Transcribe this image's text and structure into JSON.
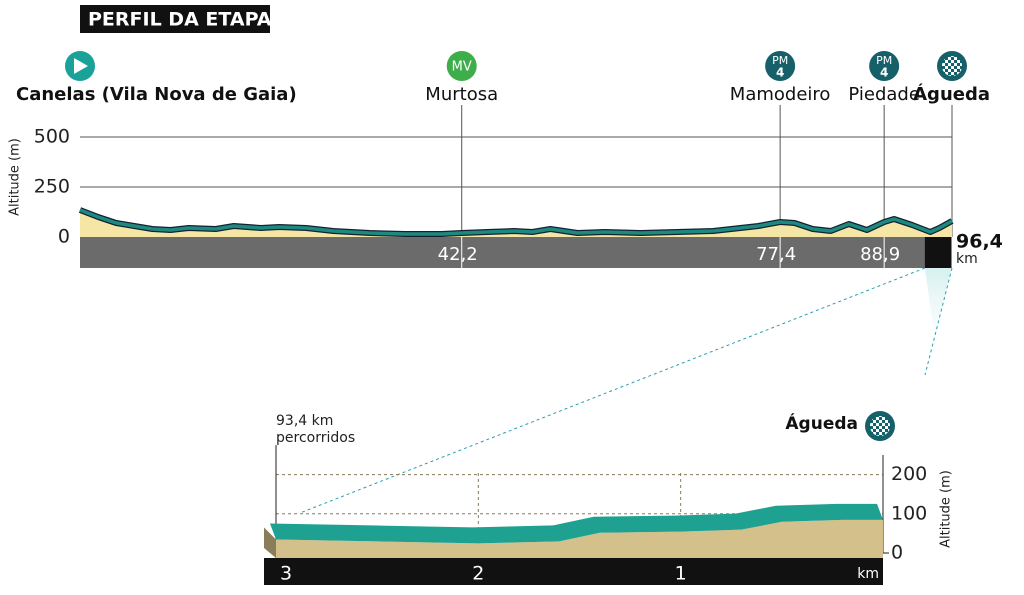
{
  "title": "PERFIL DA ETAPA",
  "chart_data": [
    {
      "type": "area",
      "ylabel": "Altitude (m)",
      "xlabel": "km",
      "x": [
        0,
        2,
        4,
        6,
        8,
        10,
        12,
        15,
        17,
        20,
        22,
        25,
        28,
        32,
        36,
        40,
        42.2,
        45,
        48,
        50,
        52,
        55,
        58,
        62,
        66,
        70,
        73,
        75,
        77.4,
        79,
        81,
        83,
        85,
        87,
        88.9,
        90,
        92,
        94,
        95,
        96.4
      ],
      "values": [
        135,
        100,
        70,
        55,
        40,
        35,
        45,
        40,
        55,
        45,
        50,
        45,
        30,
        20,
        15,
        15,
        20,
        25,
        30,
        25,
        40,
        20,
        25,
        20,
        25,
        30,
        45,
        55,
        75,
        70,
        40,
        30,
        65,
        35,
        75,
        90,
        60,
        25,
        45,
        80
      ],
      "xlim": [
        0,
        96.4
      ],
      "ylim": [
        0,
        650
      ],
      "yticks": [
        0,
        250,
        500
      ],
      "xticks": [
        {
          "value": 42.2,
          "label": "42,2"
        },
        {
          "value": 77.4,
          "label": "77,4"
        },
        {
          "value": 88.9,
          "label": "88,9"
        },
        {
          "value": 96.4,
          "label": "96,4"
        }
      ],
      "fill": "#f6e6a6",
      "line_color": "#1e8a7f",
      "places": [
        {
          "name": "Canelas (Vila Nova de Gaia)",
          "x": 0
        },
        {
          "name": "Murtosa",
          "x": 42.2,
          "badge": "MV",
          "badge_color": "#3dae4a"
        },
        {
          "name": "Mamodeiro",
          "x": 77.4,
          "badge": "PM",
          "category": "4",
          "badge_color": "#16606a"
        },
        {
          "name": "Piedade",
          "x": 88.9,
          "badge": "PM",
          "category": "4",
          "badge_color": "#16606a"
        },
        {
          "name": "Águeda",
          "x": 96.4
        }
      ]
    },
    {
      "type": "area",
      "ylabel": "Altitude (m)",
      "xlabel": "km",
      "annotation": [
        "93,4 km",
        "percorridos"
      ],
      "finish": "Águeda",
      "x": [
        3,
        2.5,
        2,
        1.6,
        1.4,
        1,
        0.7,
        0.5,
        0.2,
        0
      ],
      "values": [
        55,
        50,
        45,
        50,
        72,
        75,
        80,
        100,
        105,
        105
      ],
      "xlim": [
        3,
        0
      ],
      "ylim": [
        0,
        250
      ],
      "yticks": [
        0,
        100,
        200
      ],
      "xticks": [
        3,
        2,
        1
      ],
      "fill": "#d4c08a",
      "line_color": "#1fa191"
    }
  ]
}
